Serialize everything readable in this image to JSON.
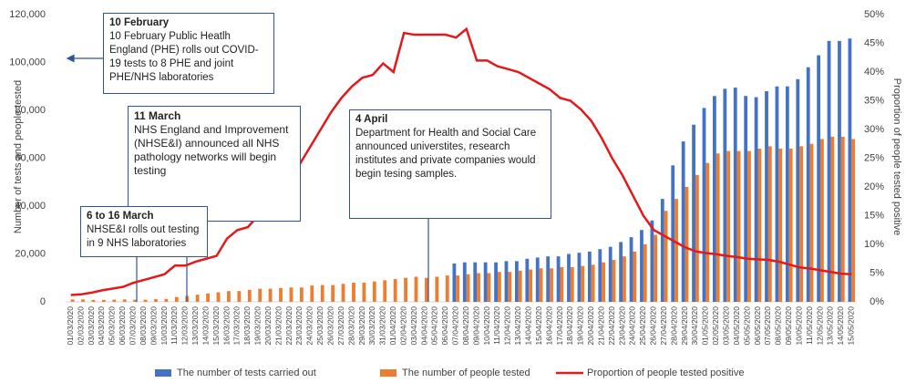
{
  "chart_data": {
    "type": "bar_line",
    "y_label": "Number of tests and people tested",
    "y2_label": "Proportion of people tested positive",
    "categories": [
      "01/03/2020",
      "02/03/2020",
      "03/03/2020",
      "04/03/2020",
      "05/03/2020",
      "06/03/2020",
      "07/03/2020",
      "08/03/2020",
      "09/03/2020",
      "10/03/2020",
      "11/03/2020",
      "12/03/2020",
      "13/03/2020",
      "14/03/2020",
      "15/03/2020",
      "16/03/2020",
      "17/03/2020",
      "18/03/2020",
      "19/03/2020",
      "20/03/2020",
      "21/03/2020",
      "22/03/2020",
      "23/03/2020",
      "24/03/2020",
      "25/03/2020",
      "26/03/2020",
      "27/03/2020",
      "28/03/2020",
      "29/03/2020",
      "30/03/2020",
      "31/03/2020",
      "01/04/2020",
      "02/04/2020",
      "03/04/2020",
      "04/04/2020",
      "05/04/2020",
      "06/04/2020",
      "07/04/2020",
      "08/04/2020",
      "09/04/2020",
      "10/04/2020",
      "11/04/2020",
      "12/04/2020",
      "13/04/2020",
      "14/04/2020",
      "15/04/2020",
      "16/04/2020",
      "17/04/2020",
      "18/04/2020",
      "19/04/2020",
      "20/04/2020",
      "21/04/2020",
      "22/04/2020",
      "23/04/2020",
      "24/04/2020",
      "25/04/2020",
      "26/04/2020",
      "27/04/2020",
      "28/04/2020",
      "29/04/2020",
      "30/04/2020",
      "01/05/2020",
      "02/05/2020",
      "03/05/2020",
      "04/05/2020",
      "05/05/2020",
      "06/05/2020",
      "07/05/2020",
      "08/05/2020",
      "09/05/2020",
      "10/05/2020",
      "11/05/2020",
      "12/05/2020",
      "13/05/2020",
      "14/05/2020",
      "15/05/2020"
    ],
    "series": [
      {
        "name": "The number of tests carried out",
        "color": "#4472c4",
        "kind": "bar",
        "values": [
          null,
          null,
          null,
          null,
          null,
          null,
          null,
          null,
          null,
          null,
          null,
          null,
          null,
          null,
          null,
          null,
          null,
          null,
          null,
          null,
          null,
          null,
          null,
          null,
          null,
          null,
          null,
          null,
          null,
          null,
          null,
          null,
          null,
          null,
          null,
          null,
          null,
          16000,
          16500,
          16500,
          16500,
          16500,
          17000,
          17000,
          18000,
          18500,
          19000,
          19000,
          20000,
          20500,
          21000,
          22000,
          23000,
          25000,
          27000,
          30000,
          34000,
          43000,
          57000,
          67000,
          74000,
          81000,
          86000,
          89000,
          89500,
          86000,
          85500,
          88000,
          90000,
          90000,
          93000,
          98000,
          103000,
          109000,
          109000,
          110000
        ]
      },
      {
        "name": "The number of people tested",
        "color": "#ed7d31",
        "kind": "bar",
        "values": [
          1000,
          1000,
          800,
          800,
          900,
          1000,
          900,
          900,
          1100,
          1200,
          2000,
          2500,
          3000,
          3500,
          4000,
          4500,
          4500,
          5000,
          5500,
          5500,
          5800,
          6000,
          6000,
          6800,
          7000,
          7000,
          7500,
          8000,
          8000,
          8500,
          9000,
          9500,
          10000,
          10500,
          10000,
          10500,
          11000,
          11000,
          11500,
          12000,
          12000,
          12500,
          12500,
          13000,
          13500,
          14000,
          14000,
          14500,
          14500,
          15000,
          15500,
          16500,
          17500,
          19000,
          21000,
          24000,
          28000,
          38000,
          43000,
          48000,
          53000,
          58000,
          62000,
          63000,
          63000,
          63000,
          64000,
          65000,
          64000,
          64000,
          65000,
          66000,
          68000,
          69000,
          69000,
          68000
        ]
      },
      {
        "name": "Proportion of people tested positive",
        "color": "#e31a1c",
        "kind": "line",
        "axis": "y2",
        "values": [
          1.2,
          1.3,
          1.6,
          2,
          2.3,
          2.6,
          3.3,
          3.8,
          4.3,
          4.8,
          6.3,
          6.3,
          7,
          7.5,
          8,
          11,
          12.5,
          13,
          15,
          17,
          19.5,
          21,
          24,
          27,
          30,
          33,
          35.5,
          37.5,
          39,
          39.5,
          41.5,
          40,
          46.8,
          46.5,
          46.5,
          46.5,
          46.5,
          46,
          47.5,
          42,
          42,
          41,
          40.5,
          40,
          39,
          38,
          37,
          35.5,
          35,
          33.5,
          31.5,
          28.5,
          25,
          22,
          18.5,
          15,
          12.5,
          11.5,
          10.5,
          9.5,
          8.8,
          8.5,
          8.3,
          8,
          7.8,
          7.5,
          7.4,
          7.3,
          7,
          6.5,
          6,
          5.8,
          5.5,
          5.2,
          4.9,
          4.8
        ]
      }
    ],
    "ylim": [
      0,
      120000
    ],
    "yticks": [
      0,
      {
        "value": 20000,
        "label": "20,000"
      },
      {
        "value": 40000,
        "label": "40,000"
      },
      {
        "value": 60000,
        "label": "60,000"
      },
      {
        "value": 80000,
        "label": "80,000"
      },
      {
        "value": 100000,
        "label": "100,000"
      },
      {
        "value": 120000,
        "label": "120,000"
      }
    ],
    "y2lim": [
      0,
      50
    ],
    "y2ticks": [
      {
        "value": 0,
        "label": "0%"
      },
      {
        "value": 5,
        "label": "5%"
      },
      {
        "value": 10,
        "label": "10%"
      },
      {
        "value": 15,
        "label": "15%"
      },
      {
        "value": 20,
        "label": "20%"
      },
      {
        "value": 25,
        "label": "25%"
      },
      {
        "value": 30,
        "label": "30%"
      },
      {
        "value": 35,
        "label": "35%"
      },
      {
        "value": 40,
        "label": "40%"
      },
      {
        "value": 45,
        "label": "45%"
      },
      {
        "value": 50,
        "label": "50%"
      }
    ],
    "annotations": [
      {
        "title": "10 February",
        "text": "10 February Public Heatlh England (PHE) rolls out COVID-19 tests to 8 PHE and joint PHE/NHS laboratories"
      },
      {
        "title": "11 March",
        "text": "NHS England and Improvement (NHSE&I) announced all NHS pathology networks will begin testing"
      },
      {
        "title": "4 April",
        "text": "Department for Health and Social Care announced universtites, research institutes and private companies would begin tesing samples."
      },
      {
        "title": "6 to 16 March",
        "text": "NHSE&I rolls out testing in 9 NHS laboratories"
      }
    ]
  }
}
